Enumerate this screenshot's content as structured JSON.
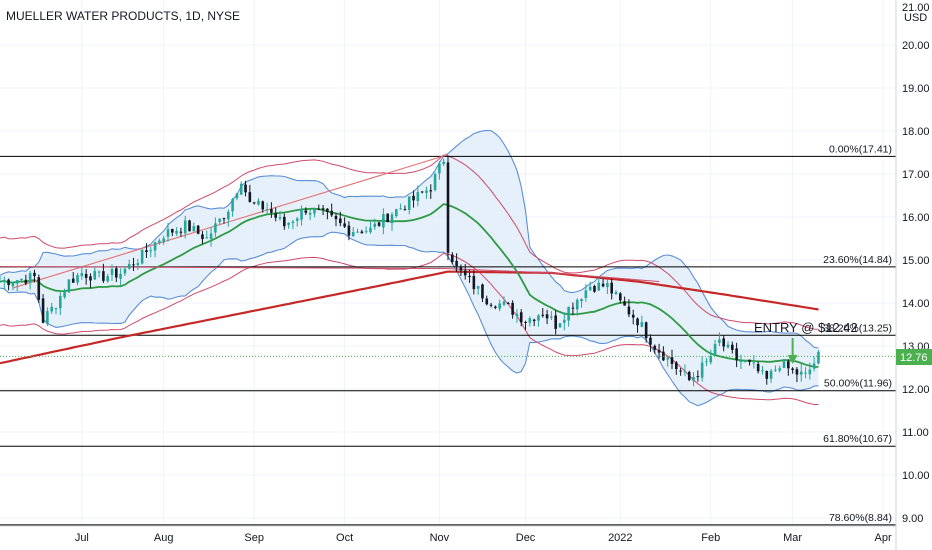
{
  "title": "MUELLER WATER PRODUCTS, 1D, NYSE",
  "currency": "USD",
  "partial_top_label": "21.00",
  "last_price": "12.76",
  "entry_label": "ENTRY @ $12.42",
  "colors": {
    "up": "#26a69a",
    "down": "#131722",
    "bb_band": "#5b8fd6",
    "bb_fill": "#dceaf8",
    "sma": "#2e9a44",
    "env": "#d04a6a",
    "ma_long": "#c62828",
    "trend": "#e57373",
    "price_tag": "#4caf50",
    "fib": "#000000",
    "arrow": "#4caf50"
  },
  "chart_data": {
    "type": "candlestick",
    "ylim": [
      9.0,
      21.0
    ],
    "y_ticks": [
      "9.00",
      "10.00",
      "11.00",
      "12.00",
      "13.00",
      "14.00",
      "15.00",
      "16.00",
      "17.00",
      "18.00",
      "19.00",
      "20.00"
    ],
    "y_tick_values": [
      9,
      10,
      11,
      12,
      13,
      14,
      15,
      16,
      17,
      18,
      19,
      20
    ],
    "x_ticks": [
      "Jul",
      "Aug",
      "Sep",
      "Oct",
      "Nov",
      "Dec",
      "2022",
      "Feb",
      "Mar",
      "Apr"
    ],
    "x_tick_days": [
      11,
      30,
      51,
      72,
      94,
      114,
      136,
      157,
      176,
      197
    ],
    "x_range_days": [
      -8,
      200
    ],
    "fib_levels": [
      {
        "label": "0.00%(17.41)",
        "value": 17.41
      },
      {
        "label": "23.60%(14.84)",
        "value": 14.84
      },
      {
        "label": "38.20%(13.25)",
        "value": 13.25
      },
      {
        "label": "50.00%(11.96)",
        "value": 11.96
      },
      {
        "label": "61.80%(10.67)",
        "value": 10.67
      },
      {
        "label": "78.60%(8.84)",
        "value": 8.84
      }
    ],
    "price_path": [
      [
        -8,
        14.5
      ],
      [
        0,
        14.6
      ],
      [
        2,
        13.6
      ],
      [
        5,
        14.0
      ],
      [
        8,
        14.5
      ],
      [
        11,
        14.7
      ],
      [
        15,
        14.6
      ],
      [
        20,
        14.7
      ],
      [
        25,
        15.1
      ],
      [
        30,
        15.6
      ],
      [
        35,
        15.8
      ],
      [
        40,
        15.5
      ],
      [
        45,
        16.2
      ],
      [
        48,
        16.9
      ],
      [
        50,
        16.3
      ],
      [
        54,
        16.2
      ],
      [
        58,
        15.8
      ],
      [
        63,
        16.2
      ],
      [
        68,
        16.0
      ],
      [
        73,
        15.7
      ],
      [
        78,
        15.7
      ],
      [
        83,
        16.1
      ],
      [
        88,
        16.4
      ],
      [
        92,
        16.7
      ],
      [
        95,
        17.35
      ],
      [
        96,
        15.3
      ],
      [
        98,
        14.8
      ],
      [
        101,
        14.5
      ],
      [
        105,
        14.1
      ],
      [
        110,
        13.9
      ],
      [
        114,
        13.6
      ],
      [
        118,
        13.8
      ],
      [
        121,
        13.5
      ],
      [
        125,
        14.0
      ],
      [
        129,
        14.4
      ],
      [
        133,
        14.4
      ],
      [
        136,
        14.0
      ],
      [
        140,
        13.6
      ],
      [
        144,
        13.0
      ],
      [
        148,
        12.6
      ],
      [
        152,
        12.2
      ],
      [
        156,
        12.6
      ],
      [
        159,
        13.1
      ],
      [
        163,
        12.7
      ],
      [
        167,
        12.5
      ],
      [
        170,
        12.2
      ],
      [
        173,
        12.6
      ],
      [
        176,
        12.4
      ],
      [
        179,
        12.3
      ],
      [
        182,
        12.76
      ]
    ],
    "ma_long": [
      [
        -8,
        12.6
      ],
      [
        20,
        13.2
      ],
      [
        50,
        13.8
      ],
      [
        80,
        14.4
      ],
      [
        96,
        14.73
      ],
      [
        120,
        14.7
      ],
      [
        140,
        14.5
      ],
      [
        160,
        14.2
      ],
      [
        182,
        13.85
      ]
    ],
    "trend_line": [
      [
        -5,
        14.35
      ],
      [
        96,
        17.45
      ]
    ],
    "support_line": [
      [
        -8,
        14.85
      ],
      [
        96,
        14.8
      ],
      [
        120,
        14.7
      ],
      [
        145,
        14.5
      ]
    ]
  }
}
